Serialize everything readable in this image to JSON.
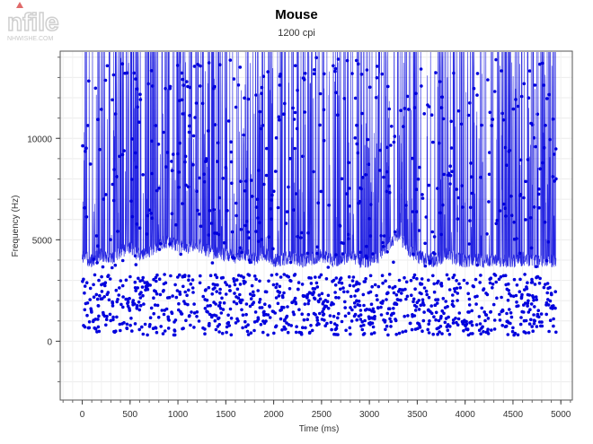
{
  "chart_data": {
    "type": "line",
    "title": "Mouse",
    "subtitle": "1200 cpi",
    "xlabel": "Time (ms)",
    "ylabel": "Frequency (Hz)",
    "xlim": [
      -230,
      5120
    ],
    "ylim": [
      -2900,
      14300
    ],
    "xticks": [
      0,
      500,
      1000,
      1500,
      2000,
      2500,
      3000,
      3500,
      4000,
      4500,
      5000
    ],
    "xtick_labels": [
      "0",
      "500",
      "1000",
      "1500",
      "2000",
      "2500",
      "3000",
      "3500",
      "4000",
      "4500",
      "5000"
    ],
    "yticks": [
      0,
      5000,
      10000
    ],
    "ytick_labels": [
      "0",
      "5000",
      "10000"
    ],
    "grid": true,
    "legend": "none",
    "series": [
      {
        "color": "#0000dd",
        "description_sample": "polling frequency samples from 0 to ~4950 ms; baseline ~4000 Hz with frequent spikes above 14000 Hz and drops to 300-3000 Hz",
        "x_range": [
          0,
          4950
        ],
        "baseline": 4000,
        "spike_max": 14300,
        "low_min": 300,
        "x": [
          0,
          100,
          200,
          300,
          400,
          500,
          600,
          700,
          800,
          900,
          1000,
          1100,
          1200,
          1300,
          1400,
          1500,
          1600,
          1700,
          1800,
          1900,
          2000,
          2100,
          2200,
          2300,
          2400,
          2500,
          2600,
          2700,
          2800,
          2900,
          3000,
          3100,
          3200,
          3300,
          3400,
          3500,
          3600,
          3700,
          3800,
          3900,
          4000,
          4100,
          4200,
          4300,
          4400,
          4500,
          4600,
          4700,
          4800,
          4900
        ],
        "y": [
          4200,
          4000,
          4300,
          4100,
          4500,
          4600,
          4300,
          4500,
          4800,
          5000,
          4700,
          4600,
          4800,
          4500,
          4400,
          4300,
          4200,
          4300,
          4100,
          4400,
          4000,
          4100,
          4200,
          4000,
          4100,
          4300,
          4000,
          4100,
          4200,
          4000,
          4000,
          4200,
          4800,
          5300,
          4600,
          4200,
          4100,
          4000,
          4300,
          4100,
          4000,
          4100,
          4000,
          4100,
          4000,
          4000,
          4100,
          4000,
          4000,
          4000
        ]
      }
    ]
  }
}
